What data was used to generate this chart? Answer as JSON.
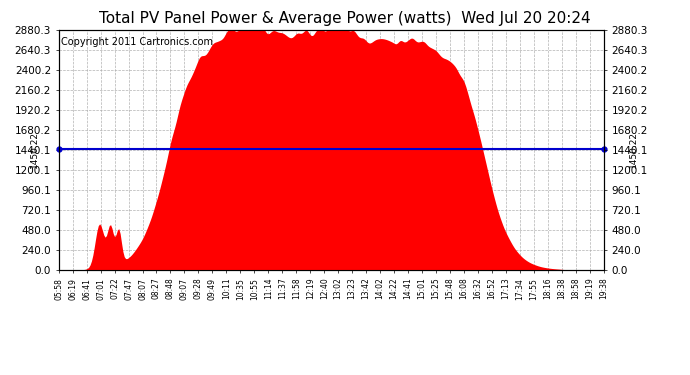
{
  "title": "Total PV Panel Power & Average Power (watts)  Wed Jul 20 20:24",
  "copyright": "Copyright 2011 Cartronics.com",
  "avg_value": 1450.22,
  "avg_label": "1450.22",
  "y_ticks": [
    0.0,
    240.0,
    480.0,
    720.1,
    960.1,
    1200.1,
    1440.1,
    1680.2,
    1920.2,
    2160.2,
    2400.2,
    2640.3,
    2880.3
  ],
  "ylim": [
    0,
    2880.3
  ],
  "fill_color": "#FF0000",
  "line_color": "#0000CD",
  "bg_color": "#FFFFFF",
  "grid_color": "#AAAAAA",
  "title_fontsize": 11,
  "copyright_fontsize": 7,
  "x_labels": [
    "05:58",
    "06:19",
    "06:41",
    "07:01",
    "07:22",
    "07:47",
    "08:07",
    "08:27",
    "08:48",
    "09:07",
    "09:28",
    "09:49",
    "10:11",
    "10:35",
    "10:55",
    "11:14",
    "11:37",
    "11:58",
    "12:19",
    "12:40",
    "13:02",
    "13:23",
    "13:42",
    "14:02",
    "14:22",
    "14:41",
    "15:01",
    "15:25",
    "15:48",
    "16:08",
    "16:32",
    "16:52",
    "17:13",
    "17:34",
    "17:55",
    "18:16",
    "18:38",
    "18:58",
    "19:19",
    "19:38"
  ],
  "num_points": 400
}
